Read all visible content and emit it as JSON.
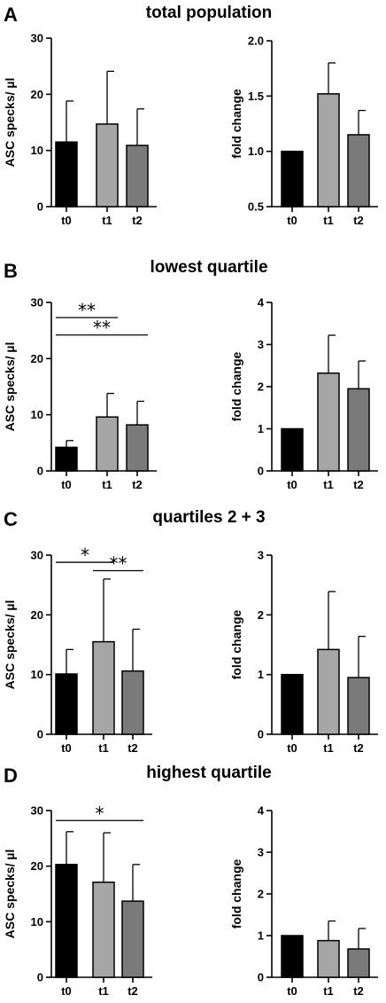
{
  "colors": {
    "t0": "#000000",
    "t1": "#a6a6a6",
    "t2": "#7a7a7a",
    "axis": "#000000"
  },
  "panels": [
    {
      "letter": "A",
      "title": "total population"
    },
    {
      "letter": "B",
      "title": "lowest quartile"
    },
    {
      "letter": "C",
      "title": "quartiles 2 + 3"
    },
    {
      "letter": "D",
      "title": "highest quartile"
    }
  ],
  "chart_data": [
    {
      "panel": "A",
      "type": "bar",
      "categories": [
        "t0",
        "t1",
        "t2"
      ],
      "values": [
        11.5,
        14.7,
        10.9
      ],
      "error_upper": [
        18.8,
        24.1,
        17.4
      ],
      "ylabel": "ASC specks/ µl",
      "ylim": [
        0,
        30
      ],
      "yticks": [
        0,
        10,
        20,
        30
      ],
      "ytick_labels": [
        "0",
        "10",
        "20",
        "30"
      ],
      "significance": []
    },
    {
      "panel": "A",
      "type": "bar",
      "categories": [
        "t0",
        "t1",
        "t2"
      ],
      "values": [
        1.0,
        1.52,
        1.15
      ],
      "error_upper": [
        1.0,
        1.8,
        1.37
      ],
      "ylabel": "fold change",
      "ylim": [
        0.5,
        2.0
      ],
      "yticks": [
        0.5,
        1.0,
        1.5,
        2.0
      ],
      "ytick_labels": [
        "0.5",
        "1.0",
        "1.5",
        "2.0"
      ],
      "significance": []
    },
    {
      "panel": "B",
      "type": "bar",
      "categories": [
        "t0",
        "t1",
        "t2"
      ],
      "values": [
        4.2,
        9.6,
        8.2
      ],
      "error_upper": [
        5.4,
        13.8,
        12.4
      ],
      "ylabel": "ASC specks/ µl",
      "ylim": [
        0,
        30
      ],
      "yticks": [
        0,
        10,
        20,
        30
      ],
      "ytick_labels": [
        "0",
        "10",
        "20",
        "30"
      ],
      "significance": [
        {
          "from": "t0",
          "to": "t1",
          "label": "**",
          "y": 27.3
        },
        {
          "from": "t0",
          "to": "t2",
          "label": "**",
          "y": 24.2
        }
      ]
    },
    {
      "panel": "B",
      "type": "bar",
      "categories": [
        "t0",
        "t1",
        "t2"
      ],
      "values": [
        1.0,
        2.32,
        1.95
      ],
      "error_upper": [
        1.0,
        3.22,
        2.61
      ],
      "ylabel": "fold change",
      "ylim": [
        0,
        4
      ],
      "yticks": [
        0,
        1,
        2,
        3,
        4
      ],
      "ytick_labels": [
        "0",
        "1",
        "2",
        "3",
        "4"
      ],
      "significance": []
    },
    {
      "panel": "C",
      "type": "bar",
      "categories": [
        "t0",
        "t1",
        "t2"
      ],
      "values": [
        10.1,
        15.5,
        10.6
      ],
      "error_upper": [
        14.2,
        26.0,
        17.6
      ],
      "ylabel": "ASC specks/ µl",
      "ylim": [
        0,
        30
      ],
      "yticks": [
        0,
        10,
        20,
        30
      ],
      "ytick_labels": [
        "0",
        "10",
        "20",
        "30"
      ],
      "significance": [
        {
          "from": "t0",
          "to": "t1",
          "label": "*",
          "y": 28.8
        },
        {
          "from": "t1",
          "to": "t2",
          "label": "**",
          "y": 27.4
        }
      ]
    },
    {
      "panel": "C",
      "type": "bar",
      "categories": [
        "t0",
        "t1",
        "t2"
      ],
      "values": [
        1.0,
        1.42,
        0.95
      ],
      "error_upper": [
        1.0,
        2.39,
        1.64
      ],
      "ylabel": "fold change",
      "ylim": [
        0,
        3
      ],
      "yticks": [
        0,
        1,
        2,
        3
      ],
      "ytick_labels": [
        "0",
        "1",
        "2",
        "3"
      ],
      "significance": []
    },
    {
      "panel": "D",
      "type": "bar",
      "categories": [
        "t0",
        "t1",
        "t2"
      ],
      "values": [
        20.3,
        17.1,
        13.7
      ],
      "error_upper": [
        26.2,
        26.0,
        20.3
      ],
      "ylabel": "ASC specks/ µl",
      "ylim": [
        0,
        30
      ],
      "yticks": [
        0,
        10,
        20,
        30
      ],
      "ytick_labels": [
        "0",
        "10",
        "20",
        "30"
      ],
      "significance": [
        {
          "from": "t0",
          "to": "t2",
          "label": "*",
          "y": 28.2
        }
      ]
    },
    {
      "panel": "D",
      "type": "bar",
      "categories": [
        "t0",
        "t1",
        "t2"
      ],
      "values": [
        1.0,
        0.88,
        0.68
      ],
      "error_upper": [
        1.0,
        1.35,
        1.17
      ],
      "ylabel": "fold change",
      "ylim": [
        0,
        4
      ],
      "yticks": [
        0,
        1,
        2,
        3,
        4
      ],
      "ytick_labels": [
        "0",
        "1",
        "2",
        "3",
        "4"
      ],
      "significance": []
    }
  ]
}
